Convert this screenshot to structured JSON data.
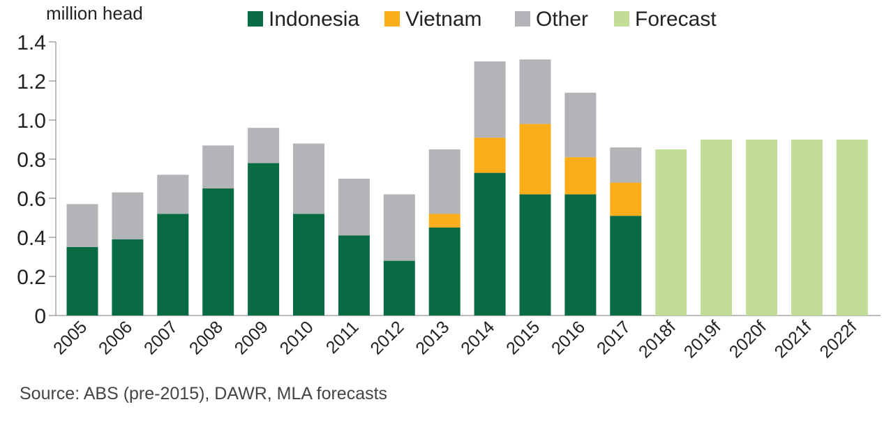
{
  "chart_data": {
    "type": "bar",
    "stacked": true,
    "ylabel": "million head",
    "ylim": [
      0,
      1.4
    ],
    "yticks": [
      0,
      0.2,
      0.4,
      0.6,
      0.8,
      1.0,
      1.2,
      1.4
    ],
    "ytick_labels": [
      "0",
      "0.2",
      "0.4",
      "0.6",
      "0.8",
      "1.0",
      "1.2",
      "1.4"
    ],
    "categories": [
      "2005",
      "2006",
      "2007",
      "2008",
      "2009",
      "2010",
      "2011",
      "2012",
      "2013",
      "2014",
      "2015",
      "2016",
      "2017",
      "2018f",
      "2019f",
      "2020f",
      "2021f",
      "2022f"
    ],
    "series": [
      {
        "name": "Indonesia",
        "color": "#086b43",
        "values": [
          0.35,
          0.39,
          0.52,
          0.65,
          0.78,
          0.52,
          0.41,
          0.28,
          0.45,
          0.73,
          0.62,
          0.62,
          0.51,
          0,
          0,
          0,
          0,
          0
        ]
      },
      {
        "name": "Vietnam",
        "color": "#fbae1a",
        "values": [
          0,
          0,
          0,
          0,
          0,
          0,
          0,
          0,
          0.07,
          0.18,
          0.36,
          0.19,
          0.17,
          0,
          0,
          0,
          0,
          0
        ]
      },
      {
        "name": "Other",
        "color": "#b3b4b7",
        "values": [
          0.22,
          0.24,
          0.2,
          0.22,
          0.18,
          0.36,
          0.29,
          0.34,
          0.33,
          0.39,
          0.33,
          0.33,
          0.18,
          0,
          0,
          0,
          0,
          0
        ]
      },
      {
        "name": "Forecast",
        "color": "#c1dd97",
        "values": [
          0,
          0,
          0,
          0,
          0,
          0,
          0,
          0,
          0,
          0,
          0,
          0,
          0,
          0.85,
          0.9,
          0.9,
          0.9,
          0.9
        ]
      }
    ],
    "legend_position": "top",
    "grid": false
  },
  "source_note": "Source: ABS (pre-2015), DAWR, MLA forecasts"
}
